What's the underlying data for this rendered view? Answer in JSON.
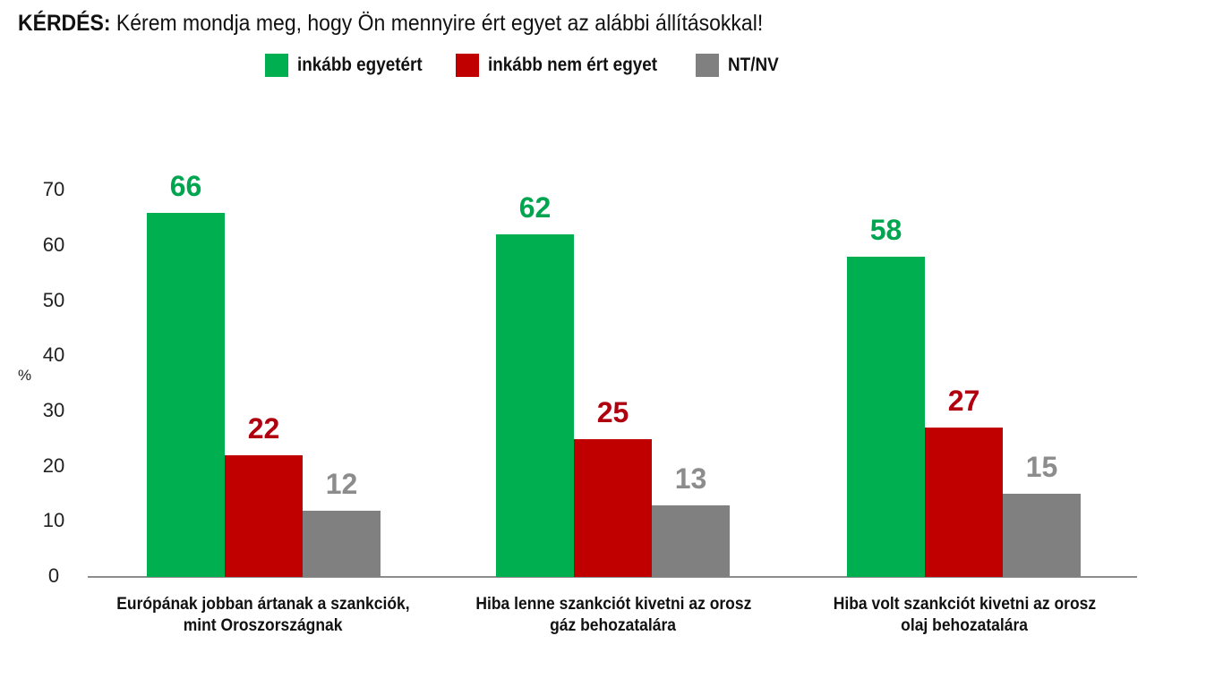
{
  "title": {
    "prefix": "KÉRDÉS:",
    "text": " Kérem mondja meg, hogy Ön mennyire ért egyet az alábbi állításokkal!"
  },
  "legend": [
    {
      "label": "inkább egyetért",
      "color": "#00b050"
    },
    {
      "label": "inkább nem ért egyet",
      "color": "#c00000"
    },
    {
      "label": "NT/NV",
      "color": "#808080"
    }
  ],
  "value_label_colors": [
    "#00a550",
    "#b00010",
    "#8c8c8c"
  ],
  "chart_data": {
    "type": "bar",
    "title": "KÉRDÉS: Kérem mondja meg, hogy Ön mennyire ért egyet az alábbi állításokkal!",
    "xlabel": "",
    "ylabel": "%",
    "ylim": [
      0,
      70
    ],
    "yticks": [
      "0",
      "10",
      "20",
      "30",
      "40",
      "50",
      "60",
      "70"
    ],
    "grid": false,
    "legend_position": "top",
    "categories": [
      {
        "line1": "Európának jobban ártanak a szankciók,",
        "line2": "mint Oroszországnak"
      },
      {
        "line1": "Hiba lenne szankciót kivetni az orosz",
        "line2": "gáz behozatalára"
      },
      {
        "line1": "Hiba volt szankciót kivetni az orosz",
        "line2": "olaj behozatalára"
      }
    ],
    "series": [
      {
        "name": "inkább egyetért",
        "values": [
          66,
          62,
          58
        ]
      },
      {
        "name": "inkább nem ért egyet",
        "values": [
          22,
          25,
          27
        ]
      },
      {
        "name": "NT/NV",
        "values": [
          12,
          13,
          15
        ]
      }
    ]
  }
}
